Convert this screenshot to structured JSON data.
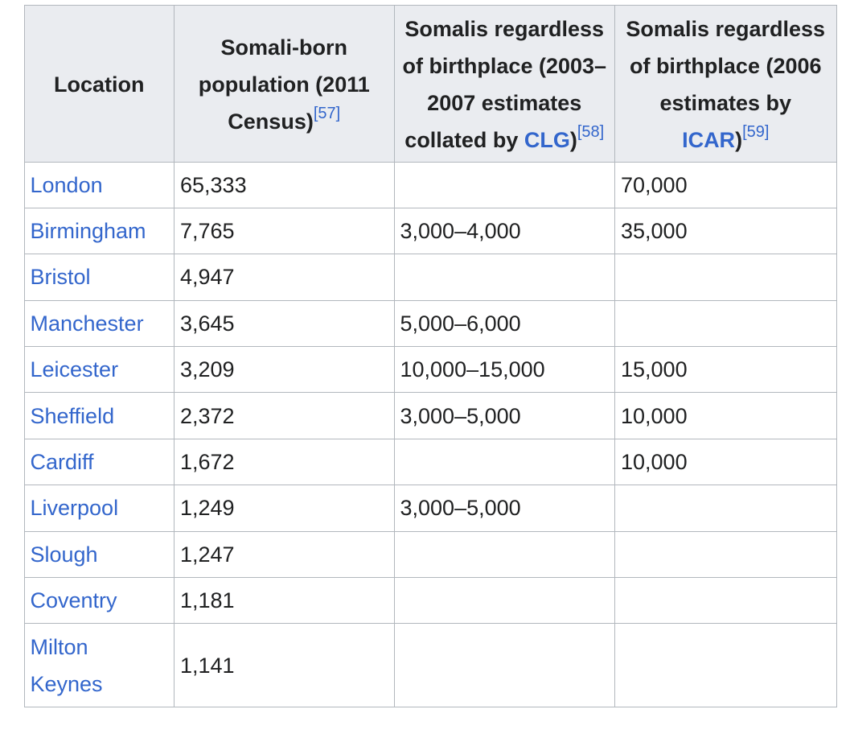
{
  "table": {
    "header": {
      "location_label": "Location",
      "census_col": {
        "text": "Somali-born population (2011 Census)",
        "ref": "[57]"
      },
      "clg_col": {
        "text_before": "Somalis regardless of birthplace (2003–2007 estimates collated by ",
        "link": "CLG",
        "text_after": ")",
        "ref": "[58]"
      },
      "icar_col": {
        "text_before": "Somalis regardless of birthplace (2006 estimates by ",
        "link": "ICAR",
        "text_after": ")",
        "ref": "[59]"
      }
    },
    "rows": [
      {
        "location": "London",
        "census_2011": "65,333",
        "clg_2003_2007": "",
        "icar_2006": "70,000"
      },
      {
        "location": "Birmingham",
        "census_2011": "7,765",
        "clg_2003_2007": "3,000–4,000",
        "icar_2006": "35,000"
      },
      {
        "location": "Bristol",
        "census_2011": "4,947",
        "clg_2003_2007": "",
        "icar_2006": ""
      },
      {
        "location": "Manchester",
        "census_2011": "3,645",
        "clg_2003_2007": "5,000–6,000",
        "icar_2006": ""
      },
      {
        "location": "Leicester",
        "census_2011": "3,209",
        "clg_2003_2007": "10,000–15,000",
        "icar_2006": "15,000"
      },
      {
        "location": "Sheffield",
        "census_2011": "2,372",
        "clg_2003_2007": "3,000–5,000",
        "icar_2006": "10,000"
      },
      {
        "location": "Cardiff",
        "census_2011": "1,672",
        "clg_2003_2007": "",
        "icar_2006": "10,000"
      },
      {
        "location": "Liverpool",
        "census_2011": "1,249",
        "clg_2003_2007": "3,000–5,000",
        "icar_2006": ""
      },
      {
        "location": "Slough",
        "census_2011": "1,247",
        "clg_2003_2007": "",
        "icar_2006": ""
      },
      {
        "location": "Coventry",
        "census_2011": "1,181",
        "clg_2003_2007": "",
        "icar_2006": ""
      },
      {
        "location": "Milton Keynes",
        "census_2011": "1,141",
        "clg_2003_2007": "",
        "icar_2006": ""
      }
    ]
  },
  "colors": {
    "link": "#3366cc",
    "header_background": "#eaecf0",
    "text": "#202122",
    "border": "#b2b7bd",
    "page_background": "#ffffff"
  }
}
